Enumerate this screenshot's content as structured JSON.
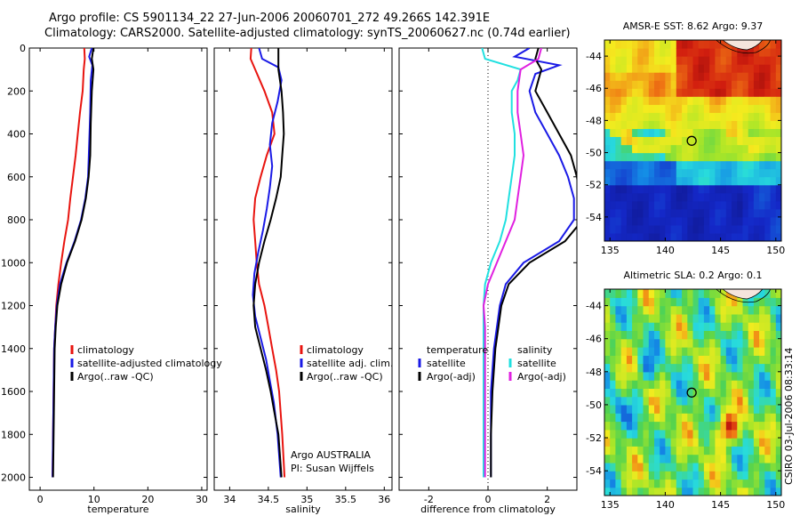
{
  "header": {
    "line1": "Argo profile: CS 5901134_22 27-Jun-2006 20060701_272 49.266S 142.391E",
    "line2": "Climatology: CARS2000. Satellite-adjusted climatology: synTS_20060627.nc (0.74d earlier)"
  },
  "side_credit": "CSIRO 03-Jul-2006 08:33:14",
  "chart_data": [
    {
      "type": "line",
      "panel": "temperature",
      "xlabel": "temperature",
      "ylabel": "",
      "xlim": [
        -2,
        31
      ],
      "ylim": [
        2060,
        0
      ],
      "xticks": [
        0,
        10,
        20,
        30
      ],
      "yticks": [
        0,
        200,
        400,
        600,
        800,
        1000,
        1200,
        1400,
        1600,
        1800,
        2000
      ],
      "legend": [
        "climatology",
        "satellite-adjusted climatology",
        "Argo(..raw -QC)"
      ],
      "legend_placement": "lower-right",
      "series": [
        {
          "name": "climatology",
          "color": "#e8140f",
          "points": [
            [
              8.2,
              0
            ],
            [
              8.3,
              50
            ],
            [
              8.1,
              100
            ],
            [
              7.9,
              200
            ],
            [
              7.4,
              300
            ],
            [
              7.0,
              400
            ],
            [
              6.6,
              500
            ],
            [
              6.1,
              600
            ],
            [
              5.6,
              700
            ],
            [
              5.2,
              800
            ],
            [
              4.5,
              900
            ],
            [
              3.9,
              1000
            ],
            [
              3.4,
              1100
            ],
            [
              3.0,
              1200
            ],
            [
              2.8,
              1300
            ],
            [
              2.6,
              1400
            ],
            [
              2.5,
              1600
            ],
            [
              2.4,
              1800
            ],
            [
              2.3,
              2000
            ]
          ]
        },
        {
          "name": "satellite-adjusted climatology",
          "color": "#1a1ae6",
          "points": [
            [
              9.6,
              0
            ],
            [
              9.1,
              40
            ],
            [
              9.7,
              80
            ],
            [
              9.4,
              150
            ],
            [
              9.3,
              300
            ],
            [
              9.1,
              450
            ],
            [
              8.9,
              600
            ],
            [
              8.4,
              700
            ],
            [
              7.6,
              800
            ],
            [
              6.4,
              900
            ],
            [
              4.9,
              1000
            ],
            [
              3.7,
              1100
            ],
            [
              3.1,
              1200
            ],
            [
              2.8,
              1300
            ],
            [
              2.6,
              1400
            ],
            [
              2.5,
              1600
            ],
            [
              2.4,
              1800
            ],
            [
              2.3,
              2000
            ]
          ]
        },
        {
          "name": "Argo(..raw -QC)",
          "color": "#000000",
          "points": [
            [
              9.9,
              0
            ],
            [
              9.6,
              50
            ],
            [
              9.9,
              100
            ],
            [
              9.6,
              200
            ],
            [
              9.4,
              350
            ],
            [
              9.3,
              500
            ],
            [
              9.0,
              600
            ],
            [
              8.5,
              700
            ],
            [
              7.7,
              800
            ],
            [
              6.5,
              900
            ],
            [
              5.0,
              1000
            ],
            [
              3.9,
              1100
            ],
            [
              3.2,
              1200
            ],
            [
              2.9,
              1300
            ],
            [
              2.7,
              1400
            ],
            [
              2.6,
              1600
            ],
            [
              2.5,
              1800
            ],
            [
              2.4,
              2000
            ]
          ]
        }
      ]
    },
    {
      "type": "line",
      "panel": "salinity",
      "xlabel": "salinity",
      "ylabel": "",
      "xlim": [
        33.8,
        36.1
      ],
      "ylim": [
        2060,
        0
      ],
      "xticks": [
        34,
        34.5,
        35,
        35.5,
        36
      ],
      "legend": [
        "climatology",
        "satellite adj. clim.",
        "Argo(..raw -QC)"
      ],
      "legend_placement": "lower-right",
      "annotation": [
        "Argo AUSTRALIA",
        "PI: Susan Wijffels"
      ],
      "series": [
        {
          "name": "climatology",
          "color": "#e8140f",
          "points": [
            [
              34.28,
              0
            ],
            [
              34.27,
              50
            ],
            [
              34.33,
              100
            ],
            [
              34.45,
              200
            ],
            [
              34.55,
              300
            ],
            [
              34.58,
              400
            ],
            [
              34.48,
              500
            ],
            [
              34.4,
              600
            ],
            [
              34.33,
              700
            ],
            [
              34.31,
              800
            ],
            [
              34.33,
              900
            ],
            [
              34.35,
              1000
            ],
            [
              34.38,
              1100
            ],
            [
              34.45,
              1200
            ],
            [
              34.5,
              1300
            ],
            [
              34.55,
              1400
            ],
            [
              34.6,
              1500
            ],
            [
              34.64,
              1600
            ],
            [
              34.68,
              1800
            ],
            [
              34.71,
              2000
            ]
          ]
        },
        {
          "name": "satellite adj. clim.",
          "color": "#1a1ae6",
          "points": [
            [
              34.38,
              0
            ],
            [
              34.42,
              50
            ],
            [
              34.63,
              90
            ],
            [
              34.67,
              150
            ],
            [
              34.62,
              250
            ],
            [
              34.55,
              350
            ],
            [
              34.52,
              450
            ],
            [
              34.55,
              550
            ],
            [
              34.52,
              650
            ],
            [
              34.48,
              750
            ],
            [
              34.43,
              850
            ],
            [
              34.37,
              950
            ],
            [
              34.32,
              1050
            ],
            [
              34.3,
              1150
            ],
            [
              34.33,
              1250
            ],
            [
              34.4,
              1350
            ],
            [
              34.47,
              1450
            ],
            [
              34.52,
              1550
            ],
            [
              34.57,
              1650
            ],
            [
              34.62,
              1800
            ],
            [
              34.66,
              2000
            ]
          ]
        },
        {
          "name": "Argo(..raw -QC)",
          "color": "#000000",
          "points": [
            [
              34.63,
              0
            ],
            [
              34.63,
              100
            ],
            [
              34.67,
              200
            ],
            [
              34.69,
              300
            ],
            [
              34.7,
              400
            ],
            [
              34.68,
              500
            ],
            [
              34.66,
              600
            ],
            [
              34.6,
              700
            ],
            [
              34.53,
              800
            ],
            [
              34.45,
              900
            ],
            [
              34.38,
              1000
            ],
            [
              34.33,
              1100
            ],
            [
              34.31,
              1200
            ],
            [
              34.33,
              1300
            ],
            [
              34.4,
              1400
            ],
            [
              34.47,
              1500
            ],
            [
              34.53,
              1600
            ],
            [
              34.58,
              1700
            ],
            [
              34.63,
              1800
            ],
            [
              34.67,
              2000
            ]
          ]
        }
      ]
    },
    {
      "type": "line",
      "panel": "difference",
      "xlabel": "difference from climatology",
      "ylabel": "",
      "xlim": [
        -3.0,
        3.0
      ],
      "ylim": [
        2060,
        0
      ],
      "xticks": [
        -2,
        0,
        2
      ],
      "legend_left_title": "temperature",
      "legend_right_title": "salinity",
      "legend": [
        "satellite",
        "Argo(-adj)",
        "satellite",
        "Argo(-adj)"
      ],
      "legend_placement": "lower-center",
      "series": [
        {
          "name": "satellite",
          "group": "temperature",
          "color": "#1a1ae6",
          "points": [
            [
              1.4,
              0
            ],
            [
              0.9,
              40
            ],
            [
              2.4,
              80
            ],
            [
              1.6,
              120
            ],
            [
              1.4,
              200
            ],
            [
              1.6,
              300
            ],
            [
              2.0,
              400
            ],
            [
              2.4,
              500
            ],
            [
              2.7,
              600
            ],
            [
              2.9,
              700
            ],
            [
              2.9,
              800
            ],
            [
              2.4,
              900
            ],
            [
              1.2,
              1000
            ],
            [
              0.6,
              1100
            ],
            [
              0.4,
              1200
            ],
            [
              0.3,
              1300
            ],
            [
              0.2,
              1400
            ],
            [
              0.1,
              1600
            ],
            [
              0.1,
              1800
            ],
            [
              0.1,
              2000
            ]
          ]
        },
        {
          "name": "Argo(-adj)",
          "group": "temperature",
          "color": "#000000",
          "points": [
            [
              1.7,
              0
            ],
            [
              1.6,
              50
            ],
            [
              1.8,
              100
            ],
            [
              1.6,
              200
            ],
            [
              2.0,
              300
            ],
            [
              2.4,
              400
            ],
            [
              2.8,
              500
            ],
            [
              3.0,
              600
            ],
            [
              3.1,
              700
            ],
            [
              3.2,
              800
            ],
            [
              2.6,
              900
            ],
            [
              1.4,
              1000
            ],
            [
              0.7,
              1100
            ],
            [
              0.45,
              1200
            ],
            [
              0.35,
              1300
            ],
            [
              0.25,
              1400
            ],
            [
              0.15,
              1600
            ],
            [
              0.1,
              1800
            ],
            [
              0.1,
              2000
            ]
          ]
        },
        {
          "name": "satellite",
          "group": "salinity",
          "color": "#20e0e0",
          "points": [
            [
              -0.2,
              0
            ],
            [
              -0.1,
              50
            ],
            [
              1.1,
              100
            ],
            [
              1.0,
              150
            ],
            [
              0.8,
              200
            ],
            [
              0.8,
              300
            ],
            [
              0.9,
              400
            ],
            [
              0.9,
              500
            ],
            [
              0.8,
              600
            ],
            [
              0.7,
              700
            ],
            [
              0.6,
              800
            ],
            [
              0.4,
              900
            ],
            [
              0.1,
              1000
            ],
            [
              -0.1,
              1100
            ],
            [
              -0.15,
              1200
            ],
            [
              -0.15,
              1300
            ],
            [
              -0.15,
              1400
            ],
            [
              -0.15,
              1600
            ],
            [
              -0.15,
              1800
            ],
            [
              -0.15,
              2000
            ]
          ]
        },
        {
          "name": "Argo(-adj)",
          "group": "salinity",
          "color": "#e020e0",
          "points": [
            [
              1.8,
              0
            ],
            [
              1.7,
              50
            ],
            [
              1.1,
              100
            ],
            [
              1.0,
              200
            ],
            [
              1.0,
              300
            ],
            [
              1.1,
              400
            ],
            [
              1.2,
              500
            ],
            [
              1.1,
              600
            ],
            [
              1.0,
              700
            ],
            [
              0.9,
              800
            ],
            [
              0.6,
              900
            ],
            [
              0.3,
              1000
            ],
            [
              0.0,
              1100
            ],
            [
              -0.15,
              1200
            ],
            [
              -0.1,
              1300
            ],
            [
              -0.1,
              1400
            ],
            [
              -0.1,
              1600
            ],
            [
              -0.1,
              1800
            ],
            [
              -0.1,
              2000
            ]
          ]
        }
      ]
    },
    {
      "type": "heatmap",
      "panel": "sst-map",
      "title": "AMSR-E SST: 8.62 Argo: 9.37",
      "xlim": [
        134.5,
        150.5
      ],
      "ylim": [
        -55.5,
        -43
      ],
      "xticks": [
        135,
        140,
        145,
        150
      ],
      "yticks": [
        -44,
        -46,
        -48,
        -50,
        -52,
        -54
      ],
      "marker": {
        "lon": 142.391,
        "lat": -49.266
      },
      "colors": {
        "low": "#1a2ab0",
        "mid": "#f0f020",
        "high": "#b00010"
      }
    },
    {
      "type": "heatmap",
      "panel": "sla-map",
      "title": "Altimetric SLA: 0.2 Argo: 0.1",
      "xlim": [
        134.5,
        150.5
      ],
      "ylim": [
        -55.5,
        -43
      ],
      "xticks": [
        135,
        140,
        145,
        150
      ],
      "yticks": [
        -44,
        -46,
        -48,
        -50,
        -52,
        -54
      ],
      "marker": {
        "lon": 142.391,
        "lat": -49.266
      },
      "colors": {
        "low": "#30c0f0",
        "mid": "#f0f020",
        "high": "#b00010"
      }
    }
  ]
}
